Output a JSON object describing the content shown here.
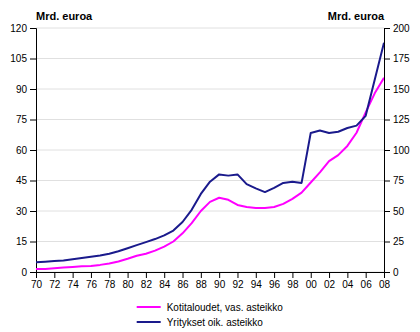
{
  "chart_data": {
    "type": "line",
    "x": [
      70,
      71,
      72,
      73,
      74,
      75,
      76,
      77,
      78,
      79,
      80,
      81,
      82,
      83,
      84,
      85,
      86,
      87,
      88,
      89,
      90,
      91,
      92,
      93,
      94,
      95,
      96,
      97,
      98,
      99,
      100,
      101,
      102,
      103,
      104,
      105,
      106,
      107,
      108
    ],
    "xlim": [
      70,
      108
    ],
    "xticks": [
      70,
      72,
      74,
      76,
      78,
      80,
      82,
      84,
      86,
      88,
      90,
      92,
      94,
      96,
      98,
      {
        "value": 100,
        "label": "00"
      },
      {
        "value": 102,
        "label": "02"
      },
      {
        "value": 104,
        "label": "04"
      },
      {
        "value": 106,
        "label": "06"
      },
      {
        "value": 108,
        "label": "08"
      }
    ],
    "ylim": [
      0,
      120
    ],
    "yticks": [
      0,
      15,
      30,
      45,
      60,
      75,
      90,
      105,
      120
    ],
    "y2lim": [
      0,
      200
    ],
    "y2ticks": [
      0,
      25,
      50,
      75,
      100,
      125,
      150,
      175,
      200
    ],
    "ylabel": "Mrd. euroa",
    "y2label": "Mrd. euroa",
    "grid": true,
    "legend": "bottom",
    "series": [
      {
        "name": "Kotitaloudet, vas. asteikko",
        "color": "#ff00ff",
        "values": [
          1.5,
          1.5,
          1.8,
          2.2,
          2.5,
          2.8,
          3.0,
          3.5,
          4.2,
          5.2,
          6.5,
          8.0,
          9.0,
          10.5,
          12.5,
          15.0,
          19.0,
          24.0,
          30.0,
          34.5,
          36.5,
          35.5,
          33.0,
          32.0,
          31.5,
          31.5,
          32.0,
          33.5,
          36.0,
          39.0,
          44.0,
          49.0,
          54.5,
          57.5,
          62.0,
          68.5,
          78.5,
          88.0,
          95.5
        ]
      },
      {
        "name": "Yritykset oik. asteikko",
        "color": "#1a1a8c",
        "axis": "y2",
        "values": [
          8.0,
          8.5,
          9.0,
          9.5,
          10.5,
          11.5,
          12.5,
          13.5,
          15.0,
          17.0,
          19.5,
          22.0,
          24.5,
          27.0,
          30.0,
          34.0,
          41.0,
          51.0,
          64.0,
          74.0,
          80.0,
          79.0,
          80.0,
          72.0,
          68.5,
          65.5,
          69.0,
          73.0,
          74.0,
          73.0,
          114.0,
          116.0,
          114.0,
          115.0,
          118.0,
          120.0,
          128.0,
          158.0,
          188.0
        ]
      }
    ]
  }
}
